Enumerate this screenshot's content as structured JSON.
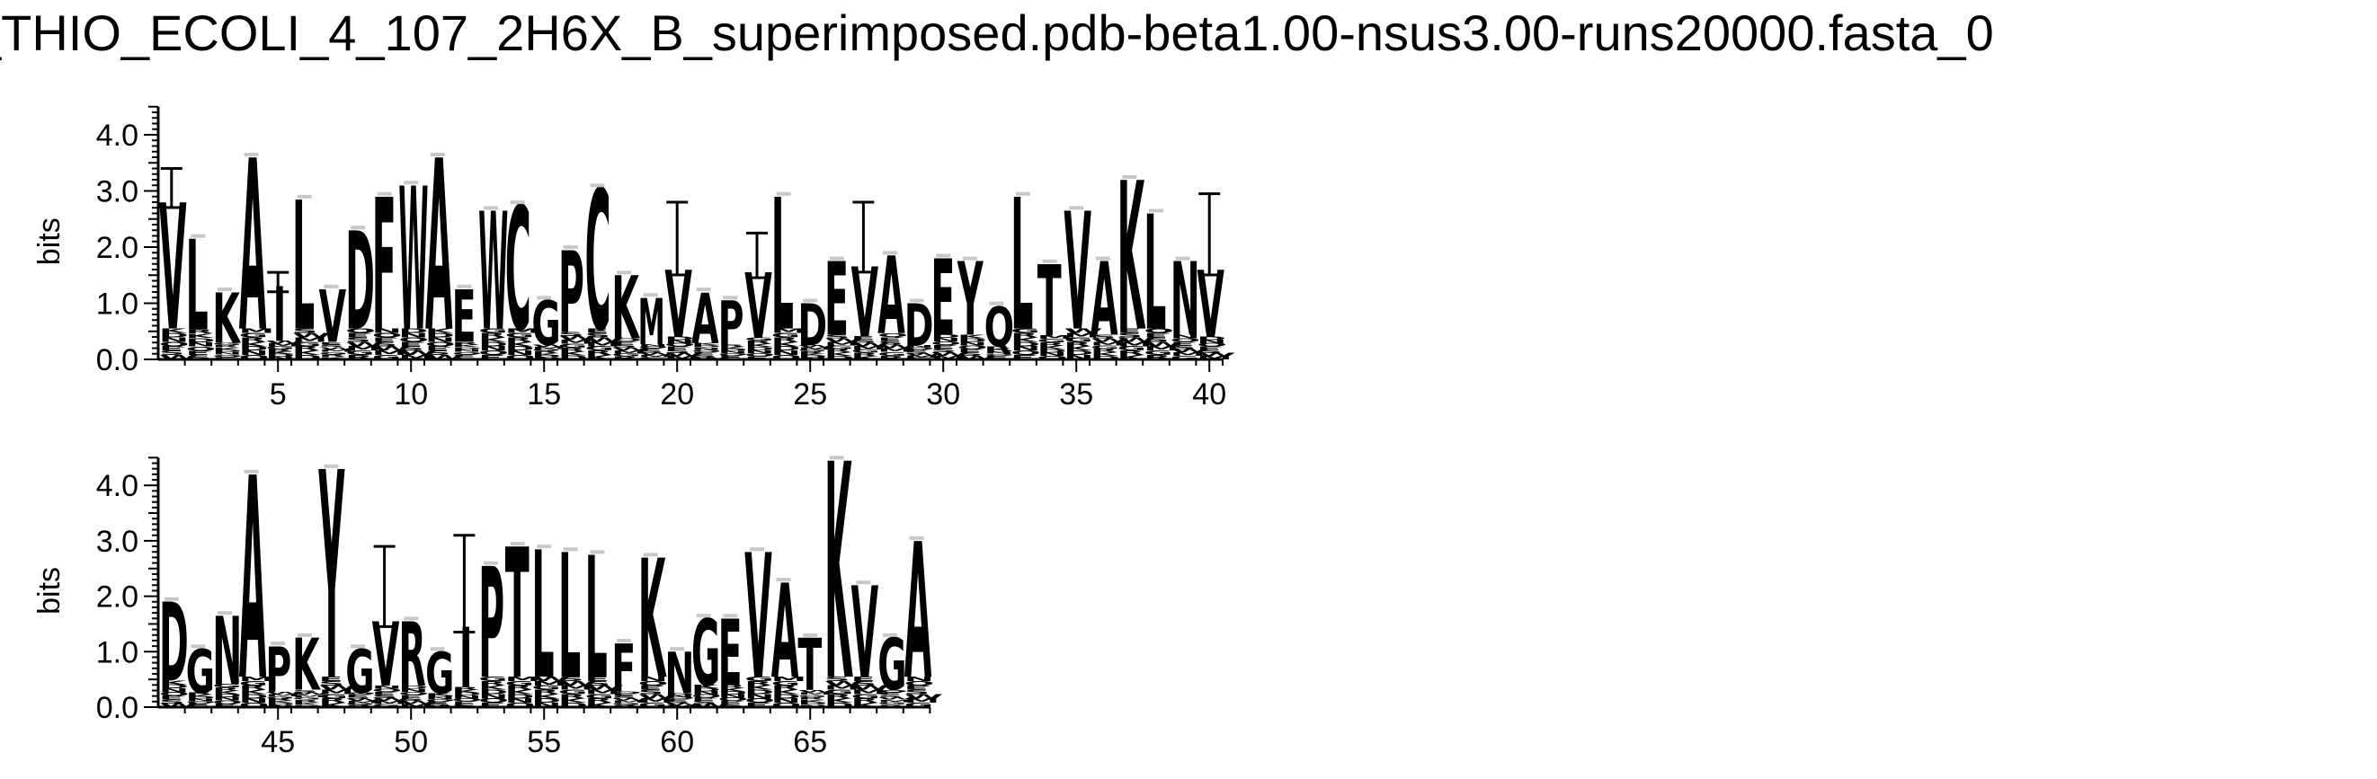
{
  "chart_data": {
    "type": "sequence-logo",
    "title": "_THIO_ECOLI_4_107_2H6X_B_superimposed.pdb-beta1.00-nsus3.00-runs20000.fasta_0",
    "ylabel": "bits",
    "ylim": [
      0,
      4.5
    ],
    "yticks": [
      "0.0",
      "1.0",
      "2.0",
      "3.0",
      "4.0"
    ],
    "colors": {
      "letters": "#000000",
      "errorbar": "#000000",
      "error_cap": "#c8c8c8",
      "background": "#ffffff"
    },
    "panels": [
      {
        "name": "top",
        "xlim": [
          0.5,
          40.5
        ],
        "xticks": [
          "5",
          "10",
          "15",
          "20",
          "25",
          "30",
          "35",
          "40"
        ],
        "columns": [
          {
            "pos": 1,
            "top": "V",
            "total": 2.8,
            "err": 0.6
          },
          {
            "pos": 2,
            "top": "L",
            "total": 2.15,
            "err": 0.0
          },
          {
            "pos": 3,
            "top": "K",
            "total": 1.2,
            "err": 0.0
          },
          {
            "pos": 4,
            "top": "A",
            "total": 3.6,
            "err": 0.0
          },
          {
            "pos": 5,
            "top": "I",
            "total": 1.3,
            "err": 0.25
          },
          {
            "pos": 6,
            "top": "L",
            "total": 2.85,
            "err": 0.0
          },
          {
            "pos": 7,
            "top": "V",
            "total": 1.25,
            "err": 0.0
          },
          {
            "pos": 8,
            "top": "D",
            "total": 2.3,
            "err": 0.0
          },
          {
            "pos": 9,
            "top": "F",
            "total": 2.9,
            "err": 0.0
          },
          {
            "pos": 10,
            "top": "W",
            "total": 3.1,
            "err": 0.0
          },
          {
            "pos": 11,
            "top": "A",
            "total": 3.6,
            "err": 0.0
          },
          {
            "pos": 12,
            "top": "E",
            "total": 1.25,
            "err": 0.0
          },
          {
            "pos": 13,
            "top": "W",
            "total": 2.65,
            "err": 0.0
          },
          {
            "pos": 14,
            "top": "C",
            "total": 2.75,
            "err": 0.0
          },
          {
            "pos": 15,
            "top": "G",
            "total": 1.05,
            "err": 0.0
          },
          {
            "pos": 16,
            "top": "P",
            "total": 1.95,
            "err": 0.0
          },
          {
            "pos": 17,
            "top": "C",
            "total": 3.05,
            "err": 0.0
          },
          {
            "pos": 18,
            "top": "K",
            "total": 1.5,
            "err": 0.0
          },
          {
            "pos": 19,
            "top": "M",
            "total": 1.1,
            "err": 0.0
          },
          {
            "pos": 20,
            "top": "V",
            "total": 1.6,
            "err": 1.2
          },
          {
            "pos": 21,
            "top": "A",
            "total": 1.2,
            "err": 0.0
          },
          {
            "pos": 22,
            "top": "P",
            "total": 1.05,
            "err": 0.0
          },
          {
            "pos": 23,
            "top": "V",
            "total": 1.55,
            "err": 0.7
          },
          {
            "pos": 24,
            "top": "L",
            "total": 2.9,
            "err": 0.0
          },
          {
            "pos": 25,
            "top": "D",
            "total": 1.0,
            "err": 0.0
          },
          {
            "pos": 26,
            "top": "E",
            "total": 1.75,
            "err": 0.0
          },
          {
            "pos": 27,
            "top": "V",
            "total": 1.65,
            "err": 1.15
          },
          {
            "pos": 28,
            "top": "A",
            "total": 1.85,
            "err": 0.0
          },
          {
            "pos": 29,
            "top": "D",
            "total": 1.0,
            "err": 0.0
          },
          {
            "pos": 30,
            "top": "E",
            "total": 1.8,
            "err": 0.0
          },
          {
            "pos": 31,
            "top": "Y",
            "total": 1.75,
            "err": 0.0
          },
          {
            "pos": 32,
            "top": "Q",
            "total": 0.95,
            "err": 0.0
          },
          {
            "pos": 33,
            "top": "L",
            "total": 2.9,
            "err": 0.0
          },
          {
            "pos": 34,
            "top": "T",
            "total": 1.7,
            "err": 0.0
          },
          {
            "pos": 35,
            "top": "V",
            "total": 2.65,
            "err": 0.0
          },
          {
            "pos": 36,
            "top": "A",
            "total": 1.75,
            "err": 0.0
          },
          {
            "pos": 37,
            "top": "K",
            "total": 3.2,
            "err": 0.0
          },
          {
            "pos": 38,
            "top": "L",
            "total": 2.6,
            "err": 0.0
          },
          {
            "pos": 39,
            "top": "N",
            "total": 1.75,
            "err": 0.0
          },
          {
            "pos": 40,
            "top": "V",
            "total": 1.6,
            "err": 1.35
          }
        ]
      },
      {
        "name": "bottom",
        "xlim": [
          40.5,
          80.5
        ],
        "xticks": [
          "45",
          "50",
          "55",
          "60",
          "65"
        ],
        "columns": [
          {
            "pos": 41,
            "top": "D",
            "total": 1.9,
            "err": 0.0
          },
          {
            "pos": 42,
            "top": "G",
            "total": 1.05,
            "err": 0.0
          },
          {
            "pos": 43,
            "top": "N",
            "total": 1.65,
            "err": 0.0
          },
          {
            "pos": 44,
            "top": "A",
            "total": 4.2,
            "err": 0.0
          },
          {
            "pos": 45,
            "top": "P",
            "total": 1.1,
            "err": 0.0
          },
          {
            "pos": 46,
            "top": "K",
            "total": 1.25,
            "err": 0.0
          },
          {
            "pos": 47,
            "top": "Y",
            "total": 4.3,
            "err": 0.0
          },
          {
            "pos": 48,
            "top": "G",
            "total": 1.05,
            "err": 0.0
          },
          {
            "pos": 49,
            "top": "V",
            "total": 1.55,
            "err": 1.35
          },
          {
            "pos": 50,
            "top": "R",
            "total": 1.55,
            "err": 0.0
          },
          {
            "pos": 51,
            "top": "G",
            "total": 1.0,
            "err": 0.0
          },
          {
            "pos": 52,
            "top": "I",
            "total": 1.45,
            "err": 1.65
          },
          {
            "pos": 53,
            "top": "P",
            "total": 2.55,
            "err": 0.0
          },
          {
            "pos": 54,
            "top": "T",
            "total": 2.9,
            "err": 0.0
          },
          {
            "pos": 55,
            "top": "L",
            "total": 2.85,
            "err": 0.0
          },
          {
            "pos": 56,
            "top": "L",
            "total": 2.8,
            "err": 0.0
          },
          {
            "pos": 57,
            "top": "L",
            "total": 2.75,
            "err": 0.0
          },
          {
            "pos": 58,
            "top": "F",
            "total": 1.15,
            "err": 0.0
          },
          {
            "pos": 59,
            "top": "K",
            "total": 2.7,
            "err": 0.0
          },
          {
            "pos": 60,
            "top": "N",
            "total": 1.0,
            "err": 0.0
          },
          {
            "pos": 61,
            "top": "G",
            "total": 1.6,
            "err": 0.0
          },
          {
            "pos": 62,
            "top": "E",
            "total": 1.6,
            "err": 0.0
          },
          {
            "pos": 63,
            "top": "V",
            "total": 2.8,
            "err": 0.0
          },
          {
            "pos": 64,
            "top": "A",
            "total": 2.25,
            "err": 0.0
          },
          {
            "pos": 65,
            "top": "T",
            "total": 1.25,
            "err": 0.0
          },
          {
            "pos": 66,
            "top": "K",
            "total": 4.45,
            "err": 0.0
          },
          {
            "pos": 67,
            "top": "V",
            "total": 2.2,
            "err": 0.0
          },
          {
            "pos": 68,
            "top": "G",
            "total": 1.25,
            "err": 0.0
          },
          {
            "pos": 69,
            "top": "A",
            "total": 3.0,
            "err": 0.0
          }
        ]
      }
    ]
  }
}
